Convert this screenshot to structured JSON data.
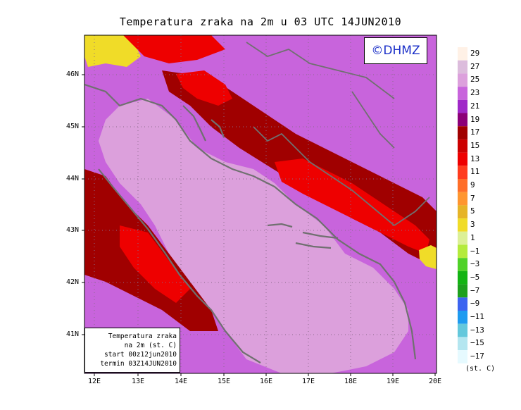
{
  "title": "Temperatura zraka na 2m u 03 UTC 14JUN2010",
  "logo": "©DHMZ",
  "info": {
    "line1": "Temperatura zraka",
    "line2": "na 2m (st. C)",
    "line3": "start 00z12jun2010",
    "line4": "termin 03Z14JUN2010"
  },
  "axes": {
    "latitudes": [
      "46N",
      "45N",
      "44N",
      "43N",
      "42N",
      "41N"
    ],
    "longitudes": [
      "12E",
      "13E",
      "14E",
      "15E",
      "16E",
      "17E",
      "18E",
      "19E",
      "20E"
    ]
  },
  "legend": {
    "unit": "(st. C)",
    "labels": [
      "29",
      "27",
      "25",
      "23",
      "21",
      "19",
      "17",
      "15",
      "13",
      "11",
      "9",
      "7",
      "5",
      "3",
      "1",
      "−1",
      "−3",
      "−5",
      "−7",
      "−9",
      "−11",
      "−13",
      "−15",
      "−17"
    ],
    "colors": [
      "#fff1e6",
      "#dcbcdc",
      "#dca0dc",
      "#c864dc",
      "#a028c8",
      "#8c0078",
      "#a00000",
      "#cc0000",
      "#ee0000",
      "#ff3c1e",
      "#ff6e28",
      "#ff9630",
      "#e6b428",
      "#f0dc28",
      "#dcf096",
      "#b4eb3c",
      "#50d228",
      "#14b414",
      "#1ea01e",
      "#3c64f0",
      "#1e9bf0",
      "#64c8dc",
      "#b4e6f0",
      "#e6faff"
    ]
  },
  "colors": {
    "sea": "#dca0dc",
    "land_base": "#c864dc",
    "warm_core": "#a00000",
    "hot": "#ee0000",
    "coast": "#707070"
  }
}
